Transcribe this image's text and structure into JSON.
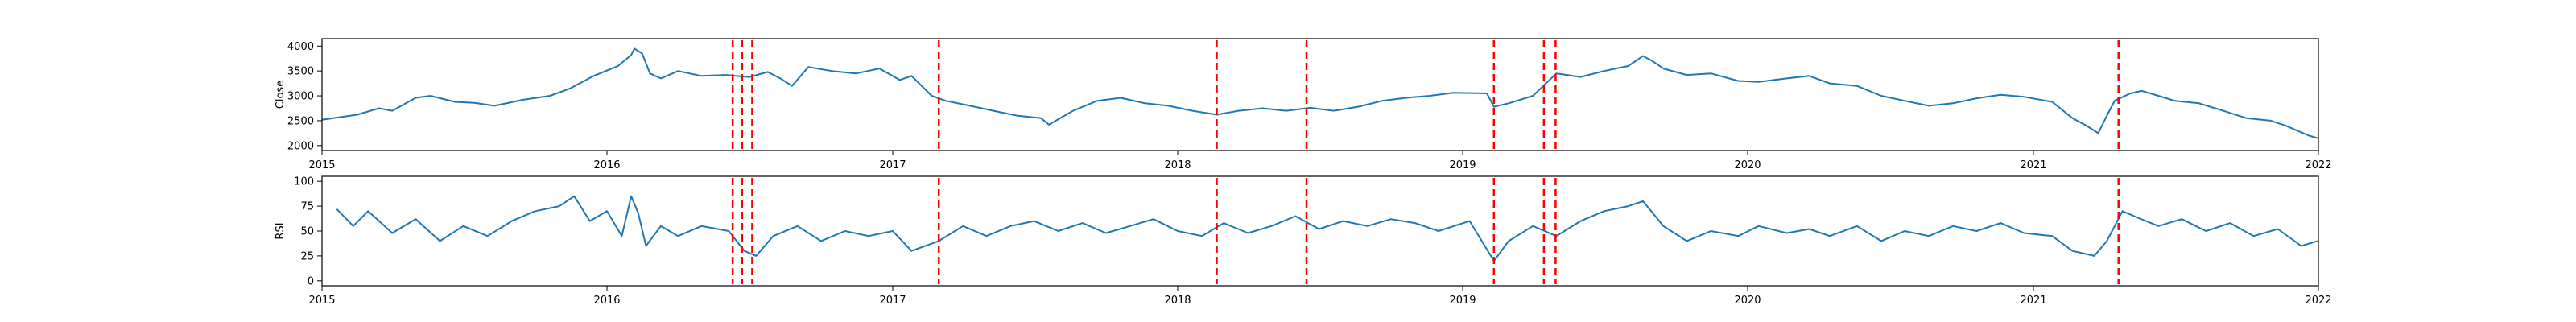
{
  "chart_data": [
    {
      "type": "line",
      "title": "",
      "xlabel": "",
      "ylabel": "Close",
      "xlim": [
        "2015-01-01",
        "2022-01-01"
      ],
      "ylim": [
        1900,
        4150
      ],
      "x_ticks": [
        "2015",
        "2016",
        "2017",
        "2018",
        "2019",
        "2020",
        "2021",
        "2022"
      ],
      "y_ticks": [
        2000,
        2500,
        3000,
        3500,
        4000
      ],
      "grid": false,
      "series": [
        {
          "color": "#1f77b4",
          "points": [
            [
              "2015-01-01",
              2520
            ],
            [
              "2015-02-15",
              2620
            ],
            [
              "2015-03-15",
              2750
            ],
            [
              "2015-04-01",
              2700
            ],
            [
              "2015-05-01",
              2960
            ],
            [
              "2015-05-20",
              3000
            ],
            [
              "2015-06-20",
              2880
            ],
            [
              "2015-07-15",
              2860
            ],
            [
              "2015-08-10",
              2800
            ],
            [
              "2015-09-15",
              2920
            ],
            [
              "2015-10-20",
              3000
            ],
            [
              "2015-11-15",
              3150
            ],
            [
              "2015-12-15",
              3400
            ],
            [
              "2016-01-15",
              3600
            ],
            [
              "2016-02-01",
              3820
            ],
            [
              "2016-02-05",
              3950
            ],
            [
              "2016-02-15",
              3850
            ],
            [
              "2016-02-25",
              3450
            ],
            [
              "2016-03-10",
              3350
            ],
            [
              "2016-04-01",
              3500
            ],
            [
              "2016-05-01",
              3400
            ],
            [
              "2016-06-01",
              3420
            ],
            [
              "2016-07-01",
              3380
            ],
            [
              "2016-07-25",
              3480
            ],
            [
              "2016-08-10",
              3350
            ],
            [
              "2016-08-25",
              3200
            ],
            [
              "2016-09-15",
              3580
            ],
            [
              "2016-10-15",
              3500
            ],
            [
              "2016-11-15",
              3450
            ],
            [
              "2016-12-15",
              3550
            ],
            [
              "2017-01-10",
              3320
            ],
            [
              "2017-01-25",
              3400
            ],
            [
              "2017-02-20",
              3000
            ],
            [
              "2017-03-10",
              2900
            ],
            [
              "2017-04-10",
              2800
            ],
            [
              "2017-05-10",
              2700
            ],
            [
              "2017-06-10",
              2600
            ],
            [
              "2017-07-10",
              2550
            ],
            [
              "2017-07-20",
              2420
            ],
            [
              "2017-08-20",
              2700
            ],
            [
              "2017-09-20",
              2900
            ],
            [
              "2017-10-20",
              2960
            ],
            [
              "2017-11-20",
              2850
            ],
            [
              "2017-12-20",
              2800
            ],
            [
              "2018-01-20",
              2700
            ],
            [
              "2018-02-20",
              2620
            ],
            [
              "2018-03-20",
              2700
            ],
            [
              "2018-04-20",
              2750
            ],
            [
              "2018-05-20",
              2700
            ],
            [
              "2018-06-20",
              2760
            ],
            [
              "2018-07-20",
              2700
            ],
            [
              "2018-08-20",
              2780
            ],
            [
              "2018-09-20",
              2900
            ],
            [
              "2018-10-20",
              2960
            ],
            [
              "2018-11-20",
              3000
            ],
            [
              "2018-12-20",
              3060
            ],
            [
              "2019-02-01",
              3050
            ],
            [
              "2019-02-10",
              2780
            ],
            [
              "2019-03-01",
              2850
            ],
            [
              "2019-04-01",
              3000
            ],
            [
              "2019-05-01",
              3450
            ],
            [
              "2019-06-01",
              3380
            ],
            [
              "2019-07-01",
              3500
            ],
            [
              "2019-08-01",
              3600
            ],
            [
              "2019-08-20",
              3800
            ],
            [
              "2019-09-01",
              3700
            ],
            [
              "2019-09-15",
              3550
            ],
            [
              "2019-10-15",
              3420
            ],
            [
              "2019-11-15",
              3450
            ],
            [
              "2019-12-20",
              3300
            ],
            [
              "2020-01-15",
              3280
            ],
            [
              "2020-02-20",
              3350
            ],
            [
              "2020-03-20",
              3400
            ],
            [
              "2020-04-15",
              3250
            ],
            [
              "2020-05-20",
              3200
            ],
            [
              "2020-06-20",
              3000
            ],
            [
              "2020-07-20",
              2900
            ],
            [
              "2020-08-20",
              2800
            ],
            [
              "2020-09-20",
              2850
            ],
            [
              "2020-10-20",
              2950
            ],
            [
              "2020-11-20",
              3020
            ],
            [
              "2020-12-20",
              2980
            ],
            [
              "2021-01-25",
              2880
            ],
            [
              "2021-02-20",
              2550
            ],
            [
              "2021-03-10",
              2400
            ],
            [
              "2021-03-25",
              2250
            ],
            [
              "2021-04-05",
              2600
            ],
            [
              "2021-04-15",
              2900
            ],
            [
              "2021-05-05",
              3050
            ],
            [
              "2021-05-20",
              3100
            ],
            [
              "2021-06-10",
              3000
            ],
            [
              "2021-07-01",
              2900
            ],
            [
              "2021-08-01",
              2850
            ],
            [
              "2021-09-01",
              2700
            ],
            [
              "2021-10-01",
              2550
            ],
            [
              "2021-11-01",
              2500
            ],
            [
              "2021-11-20",
              2400
            ],
            [
              "2021-12-20",
              2200
            ],
            [
              "2021-12-31",
              2150
            ]
          ]
        }
      ],
      "vlines": {
        "color": "#ff0000",
        "style": "dashed",
        "dates": [
          "2016-06-10",
          "2016-06-22",
          "2016-07-05",
          "2017-03-01",
          "2018-02-20",
          "2018-06-15",
          "2019-02-10",
          "2019-04-15",
          "2019-04-30",
          "2021-04-20"
        ]
      }
    },
    {
      "type": "line",
      "title": "",
      "xlabel": "",
      "ylabel": "RSI",
      "xlim": [
        "2015-01-01",
        "2022-01-01"
      ],
      "ylim": [
        -5,
        105
      ],
      "x_ticks": [
        "2015",
        "2016",
        "2017",
        "2018",
        "2019",
        "2020",
        "2021",
        "2022"
      ],
      "y_ticks": [
        0,
        25,
        50,
        75,
        100
      ],
      "grid": false,
      "series": [
        {
          "color": "#1f77b4",
          "points": [
            [
              "2015-01-20",
              72
            ],
            [
              "2015-02-10",
              55
            ],
            [
              "2015-03-01",
              70
            ],
            [
              "2015-04-01",
              48
            ],
            [
              "2015-05-01",
              62
            ],
            [
              "2015-06-01",
              40
            ],
            [
              "2015-07-01",
              55
            ],
            [
              "2015-08-01",
              45
            ],
            [
              "2015-09-01",
              60
            ],
            [
              "2015-10-01",
              70
            ],
            [
              "2015-11-01",
              75
            ],
            [
              "2015-11-20",
              85
            ],
            [
              "2015-12-10",
              60
            ],
            [
              "2016-01-01",
              70
            ],
            [
              "2016-01-20",
              45
            ],
            [
              "2016-02-01",
              85
            ],
            [
              "2016-02-10",
              68
            ],
            [
              "2016-02-20",
              35
            ],
            [
              "2016-03-10",
              55
            ],
            [
              "2016-04-01",
              45
            ],
            [
              "2016-05-01",
              55
            ],
            [
              "2016-06-05",
              50
            ],
            [
              "2016-06-25",
              30
            ],
            [
              "2016-07-10",
              25
            ],
            [
              "2016-08-01",
              45
            ],
            [
              "2016-09-01",
              55
            ],
            [
              "2016-10-01",
              40
            ],
            [
              "2016-11-01",
              50
            ],
            [
              "2016-12-01",
              45
            ],
            [
              "2017-01-01",
              50
            ],
            [
              "2017-01-25",
              30
            ],
            [
              "2017-03-01",
              40
            ],
            [
              "2017-04-01",
              55
            ],
            [
              "2017-05-01",
              45
            ],
            [
              "2017-06-01",
              55
            ],
            [
              "2017-07-01",
              60
            ],
            [
              "2017-08-01",
              50
            ],
            [
              "2017-09-01",
              58
            ],
            [
              "2017-10-01",
              48
            ],
            [
              "2017-11-01",
              55
            ],
            [
              "2017-12-01",
              62
            ],
            [
              "2018-01-01",
              50
            ],
            [
              "2018-02-01",
              45
            ],
            [
              "2018-03-01",
              58
            ],
            [
              "2018-04-01",
              48
            ],
            [
              "2018-05-01",
              55
            ],
            [
              "2018-06-01",
              65
            ],
            [
              "2018-07-01",
              52
            ],
            [
              "2018-08-01",
              60
            ],
            [
              "2018-09-01",
              55
            ],
            [
              "2018-10-01",
              62
            ],
            [
              "2018-11-01",
              58
            ],
            [
              "2018-12-01",
              50
            ],
            [
              "2019-01-10",
              60
            ],
            [
              "2019-02-10",
              20
            ],
            [
              "2019-03-01",
              40
            ],
            [
              "2019-04-01",
              55
            ],
            [
              "2019-05-01",
              45
            ],
            [
              "2019-06-01",
              60
            ],
            [
              "2019-07-01",
              70
            ],
            [
              "2019-08-01",
              75
            ],
            [
              "2019-08-20",
              80
            ],
            [
              "2019-09-15",
              55
            ],
            [
              "2019-10-15",
              40
            ],
            [
              "2019-11-15",
              50
            ],
            [
              "2019-12-20",
              45
            ],
            [
              "2020-01-15",
              55
            ],
            [
              "2020-02-20",
              48
            ],
            [
              "2020-03-20",
              52
            ],
            [
              "2020-04-15",
              45
            ],
            [
              "2020-05-20",
              55
            ],
            [
              "2020-06-20",
              40
            ],
            [
              "2020-07-20",
              50
            ],
            [
              "2020-08-20",
              45
            ],
            [
              "2020-09-20",
              55
            ],
            [
              "2020-10-20",
              50
            ],
            [
              "2020-11-20",
              58
            ],
            [
              "2020-12-20",
              48
            ],
            [
              "2021-01-25",
              45
            ],
            [
              "2021-02-20",
              30
            ],
            [
              "2021-03-20",
              25
            ],
            [
              "2021-04-05",
              40
            ],
            [
              "2021-04-25",
              70
            ],
            [
              "2021-05-10",
              65
            ],
            [
              "2021-06-10",
              55
            ],
            [
              "2021-07-10",
              62
            ],
            [
              "2021-08-10",
              50
            ],
            [
              "2021-09-10",
              58
            ],
            [
              "2021-10-10",
              45
            ],
            [
              "2021-11-10",
              52
            ],
            [
              "2021-12-10",
              35
            ],
            [
              "2021-12-31",
              40
            ]
          ]
        }
      ],
      "vlines": {
        "color": "#ff0000",
        "style": "dashed",
        "dates": [
          "2016-06-10",
          "2016-06-22",
          "2016-07-05",
          "2017-03-01",
          "2018-02-20",
          "2018-06-15",
          "2019-02-10",
          "2019-04-15",
          "2019-04-30",
          "2021-04-20"
        ]
      }
    }
  ]
}
